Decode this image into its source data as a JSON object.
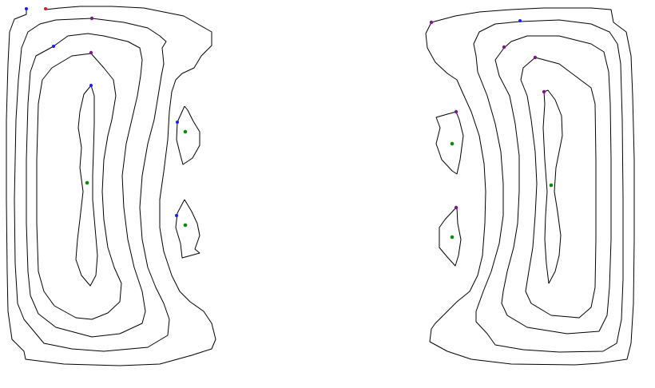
{
  "marker_colors": {
    "blue": "#1a1aff",
    "red": "#cc2222",
    "purple": "#7a1a8a",
    "green": "#0a8a0a",
    "line": "#000000"
  },
  "panels": [
    {
      "id": "left",
      "contour_count": 5,
      "marker_count": 10
    },
    {
      "id": "right",
      "contour_count": 5,
      "marker_count": 9
    }
  ]
}
